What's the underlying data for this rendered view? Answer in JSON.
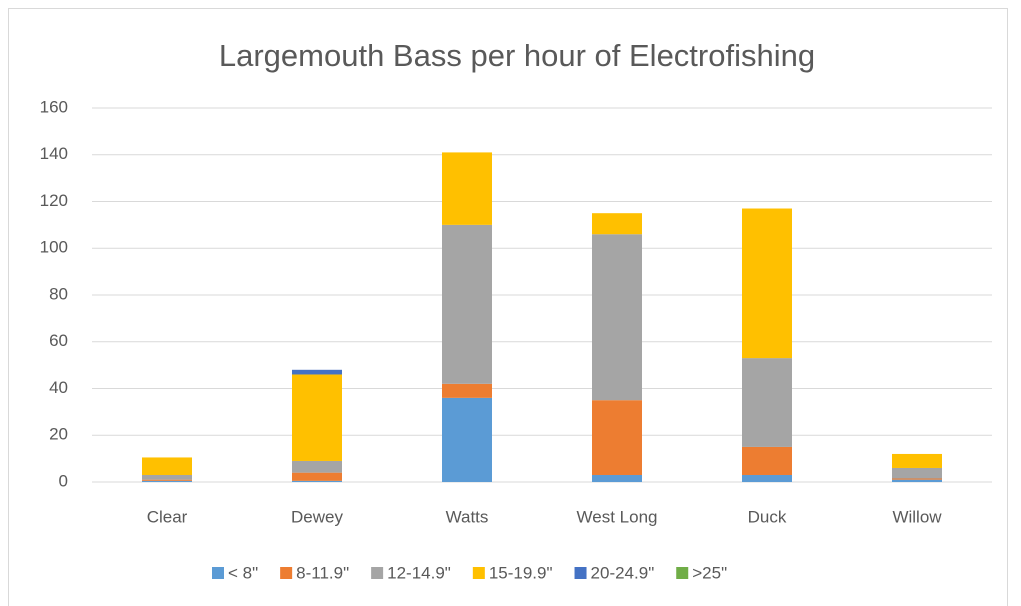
{
  "chart_data": {
    "type": "stacked_bar",
    "title": "Largemouth Bass per hour of Electrofishing",
    "categories": [
      "Clear",
      "Dewey",
      "Watts",
      "West Long",
      "Duck",
      "Willow"
    ],
    "series": [
      {
        "name": "< 8\"",
        "color": "#5b9bd5",
        "values": [
          0.5,
          0.5,
          36,
          3,
          3,
          1
        ]
      },
      {
        "name": "8-11.9\"",
        "color": "#ed7d31",
        "values": [
          0.5,
          3.5,
          6,
          32,
          12,
          0.5
        ]
      },
      {
        "name": "12-14.9\"",
        "color": "#a5a5a5",
        "values": [
          2,
          5,
          68,
          71,
          38,
          4.5
        ]
      },
      {
        "name": "15-19.9\"",
        "color": "#ffc000",
        "values": [
          7.5,
          37,
          31,
          9,
          64,
          6
        ]
      },
      {
        "name": "20-24.9\"",
        "color": "#4472c4",
        "values": [
          0,
          2,
          0,
          0,
          0,
          0
        ]
      },
      {
        "name": ">25\"",
        "color": "#70ad47",
        "values": [
          0,
          0,
          0,
          0,
          0,
          0
        ]
      }
    ],
    "ylim": [
      0,
      160
    ],
    "yticks": [
      0,
      20,
      40,
      60,
      80,
      100,
      120,
      140,
      160
    ],
    "grid": true,
    "legend": "bottom"
  }
}
